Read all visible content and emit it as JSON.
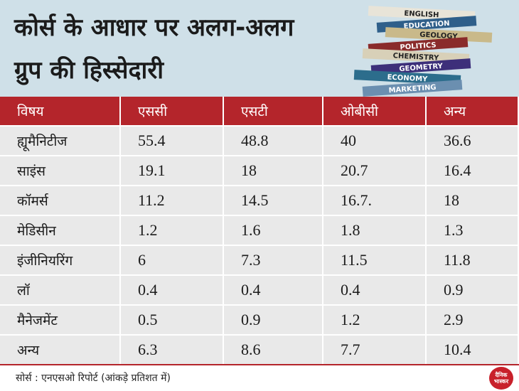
{
  "header": {
    "title_lines": [
      "कोर्स के आधार पर अलग-अलग",
      "ग्रुप की हिस्सेदारी"
    ],
    "book_labels": [
      "ENGLISH",
      "EDUCATION",
      "GEOLOGY",
      "POLITICS",
      "CHEMISTRY",
      "GEOMETRY",
      "ECONOMY",
      "MARKETING"
    ]
  },
  "table": {
    "columns": [
      "विषय",
      "एससी",
      "एसटी",
      "ओबीसी",
      "अन्य"
    ],
    "rows": [
      [
        "ह्यूमैनिटीज",
        "55.4",
        "48.8",
        "40",
        "36.6"
      ],
      [
        "साइंस",
        "19.1",
        "18",
        "20.7",
        "16.4"
      ],
      [
        "कॉमर्स",
        "11.2",
        "14.5",
        "16.7.",
        "18"
      ],
      [
        "मेडिसीन",
        "1.2",
        "1.6",
        "1.8",
        "1.3"
      ],
      [
        "इंजीनियरिंग",
        "6",
        "7.3",
        "11.5",
        "11.8"
      ],
      [
        "लॉ",
        "0.4",
        "0.4",
        "0.4",
        "0.9"
      ],
      [
        "मैनेजमेंट",
        "0.5",
        "0.9",
        "1.2",
        "2.9"
      ],
      [
        "अन्य",
        "6.3",
        "8.6",
        "7.7",
        "10.4"
      ]
    ]
  },
  "footer": {
    "source": "सोर्स : एनएसओ रिपोर्ट  (आंकड़े प्रतिशत में)",
    "logo": "दैनिक भास्कर"
  }
}
